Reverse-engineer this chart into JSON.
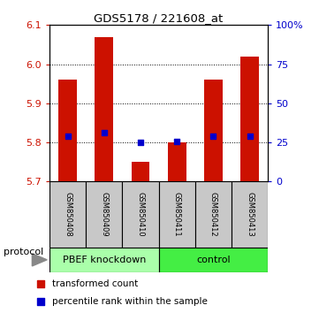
{
  "title": "GDS5178 / 221608_at",
  "samples": [
    "GSM850408",
    "GSM850409",
    "GSM850410",
    "GSM850411",
    "GSM850412",
    "GSM850413"
  ],
  "red_values": [
    5.96,
    6.07,
    5.75,
    5.8,
    5.96,
    6.02
  ],
  "blue_values": [
    5.815,
    5.825,
    5.8,
    5.803,
    5.815,
    5.815
  ],
  "ylim_left": [
    5.7,
    6.1
  ],
  "ylim_right": [
    0,
    100
  ],
  "right_ticks": [
    0,
    25,
    50,
    75,
    100
  ],
  "right_labels": [
    "0",
    "25",
    "50",
    "75",
    "100%"
  ],
  "left_ticks": [
    5.7,
    5.8,
    5.9,
    6.0,
    6.1
  ],
  "group_labels": [
    "PBEF knockdown",
    "control"
  ],
  "group_colors": [
    "#aaffaa",
    "#44ee44"
  ],
  "bar_color": "#CC1100",
  "dot_color": "#0000CC",
  "bar_base": 5.7,
  "bar_width": 0.5,
  "dot_size": 25,
  "bg_color": "#FFFFFF",
  "sample_bg": "#C8C8C8",
  "left_axis_color": "#CC1100",
  "right_axis_color": "#0000CC",
  "protocol_label": "protocol",
  "legend_items": [
    {
      "color": "#CC1100",
      "label": "transformed count"
    },
    {
      "color": "#0000CC",
      "label": "percentile rank within the sample"
    }
  ]
}
